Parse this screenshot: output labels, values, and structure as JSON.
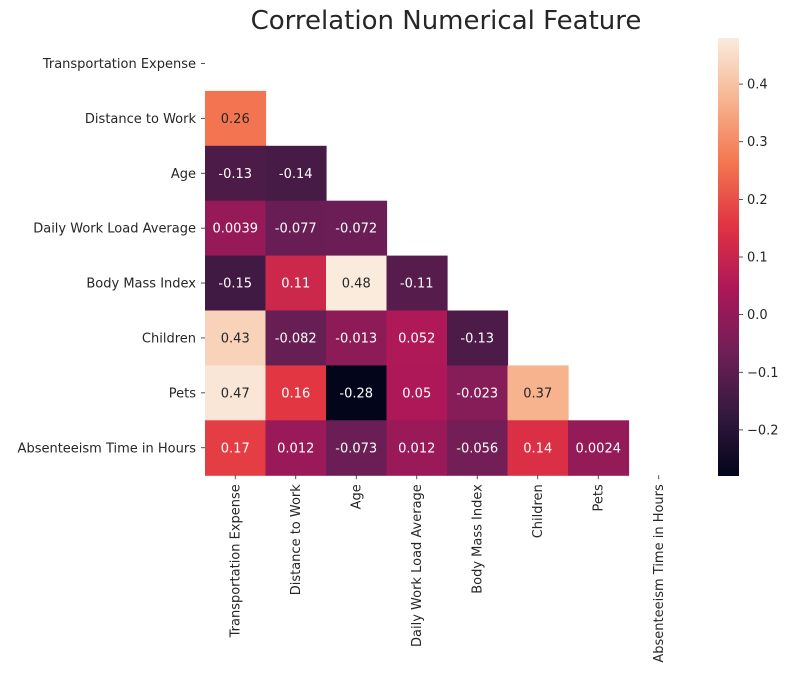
{
  "chart_data": {
    "type": "heatmap",
    "title": "Correlation Numerical Feature",
    "labels": [
      "Transportation Expense",
      "Distance to Work",
      "Age",
      "Daily Work Load Average",
      "Body Mass Index",
      "Children",
      "Pets",
      "Absenteeism Time in Hours"
    ],
    "mask": "upper-triangle-including-diagonal",
    "cells": [
      {
        "row": 1,
        "col": 0,
        "value": 0.26,
        "label": "0.26"
      },
      {
        "row": 2,
        "col": 0,
        "value": -0.13,
        "label": "-0.13"
      },
      {
        "row": 2,
        "col": 1,
        "value": -0.14,
        "label": "-0.14"
      },
      {
        "row": 3,
        "col": 0,
        "value": 0.0039,
        "label": "0.0039"
      },
      {
        "row": 3,
        "col": 1,
        "value": -0.077,
        "label": "-0.077"
      },
      {
        "row": 3,
        "col": 2,
        "value": -0.072,
        "label": "-0.072"
      },
      {
        "row": 4,
        "col": 0,
        "value": -0.15,
        "label": "-0.15"
      },
      {
        "row": 4,
        "col": 1,
        "value": 0.11,
        "label": "0.11"
      },
      {
        "row": 4,
        "col": 2,
        "value": 0.48,
        "label": "0.48"
      },
      {
        "row": 4,
        "col": 3,
        "value": -0.11,
        "label": "-0.11"
      },
      {
        "row": 5,
        "col": 0,
        "value": 0.43,
        "label": "0.43"
      },
      {
        "row": 5,
        "col": 1,
        "value": -0.082,
        "label": "-0.082"
      },
      {
        "row": 5,
        "col": 2,
        "value": -0.013,
        "label": "-0.013"
      },
      {
        "row": 5,
        "col": 3,
        "value": 0.052,
        "label": "0.052"
      },
      {
        "row": 5,
        "col": 4,
        "value": -0.13,
        "label": "-0.13"
      },
      {
        "row": 6,
        "col": 0,
        "value": 0.47,
        "label": "0.47"
      },
      {
        "row": 6,
        "col": 1,
        "value": 0.16,
        "label": "0.16"
      },
      {
        "row": 6,
        "col": 2,
        "value": -0.28,
        "label": "-0.28"
      },
      {
        "row": 6,
        "col": 3,
        "value": 0.05,
        "label": "0.05"
      },
      {
        "row": 6,
        "col": 4,
        "value": -0.023,
        "label": "-0.023"
      },
      {
        "row": 6,
        "col": 5,
        "value": 0.37,
        "label": "0.37"
      },
      {
        "row": 7,
        "col": 0,
        "value": 0.17,
        "label": "0.17"
      },
      {
        "row": 7,
        "col": 1,
        "value": 0.012,
        "label": "0.012"
      },
      {
        "row": 7,
        "col": 2,
        "value": -0.073,
        "label": "-0.073"
      },
      {
        "row": 7,
        "col": 3,
        "value": 0.012,
        "label": "0.012"
      },
      {
        "row": 7,
        "col": 4,
        "value": -0.056,
        "label": "-0.056"
      },
      {
        "row": 7,
        "col": 5,
        "value": 0.14,
        "label": "0.14"
      },
      {
        "row": 7,
        "col": 6,
        "value": 0.0024,
        "label": "0.0024"
      }
    ],
    "colorbar": {
      "colormap": "rocket",
      "vmin": -0.28,
      "vmax": 0.48,
      "ticks": [
        -0.2,
        -0.1,
        0.0,
        0.1,
        0.2,
        0.3,
        0.4
      ],
      "tick_labels": [
        "−0.2",
        "−0.1",
        "0.0",
        "0.1",
        "0.2",
        "0.3",
        "0.4"
      ],
      "location": "right"
    },
    "grid": false
  },
  "colors": {
    "background": "#ffffff",
    "text": "#262626",
    "colormap_stops": [
      "#03051a",
      "#35193e",
      "#701f57",
      "#ad1759",
      "#e13342",
      "#f37651",
      "#f6b48f",
      "#faebdd"
    ]
  }
}
